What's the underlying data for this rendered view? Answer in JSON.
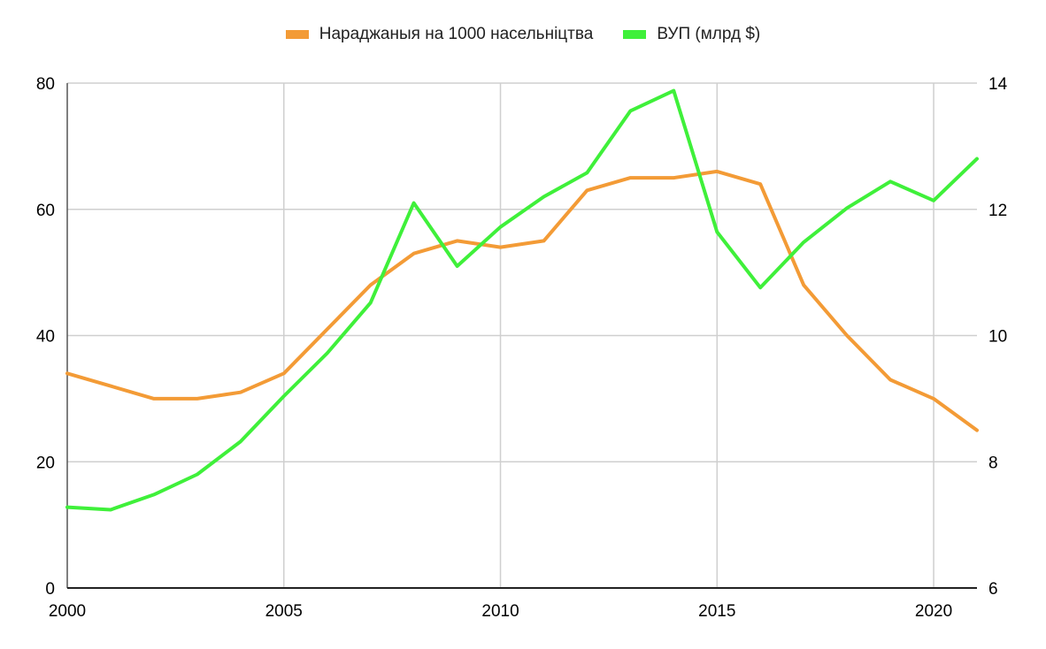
{
  "chart_data": {
    "type": "line",
    "x": [
      2000,
      2001,
      2002,
      2003,
      2004,
      2005,
      2006,
      2007,
      2008,
      2009,
      2010,
      2011,
      2012,
      2013,
      2014,
      2015,
      2016,
      2017,
      2018,
      2019,
      2020,
      2021
    ],
    "xlim": [
      2000,
      2021
    ],
    "x_ticks": [
      "2000",
      "2005",
      "2010",
      "2015",
      "2020"
    ],
    "y_left": {
      "ylim": [
        0,
        80
      ],
      "ticks": [
        "0",
        "20",
        "40",
        "60",
        "80"
      ]
    },
    "y_right": {
      "ylim": [
        6,
        14
      ],
      "ticks": [
        "6",
        "8",
        "10",
        "12",
        "14"
      ]
    },
    "grid": true,
    "legend_position": "top-center",
    "series": [
      {
        "name": "Нараджаныя на 1000 насельніцтва",
        "axis": "left",
        "color": "#f39b36",
        "values": [
          34,
          32,
          30,
          30,
          31,
          34,
          41,
          48,
          53,
          55,
          54,
          55,
          63,
          65,
          65,
          66,
          64,
          48,
          40,
          33,
          30,
          25
        ]
      },
      {
        "name": "ВУП (млрд $)",
        "axis": "right",
        "color": "#3ff03a",
        "values": [
          7.28,
          7.24,
          7.48,
          7.8,
          8.32,
          9.04,
          9.72,
          10.52,
          12.1,
          11.1,
          11.72,
          12.2,
          12.58,
          13.56,
          13.88,
          11.64,
          10.76,
          11.48,
          12.02,
          12.44,
          12.14,
          12.8
        ]
      }
    ]
  }
}
